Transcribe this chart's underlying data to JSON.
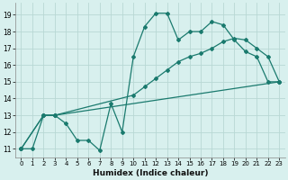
{
  "xlabel": "Humidex (Indice chaleur)",
  "bg_color": "#d8f0ee",
  "grid_color": "#b8d8d4",
  "line_color": "#1a7a6e",
  "xlim": [
    -0.5,
    23.5
  ],
  "ylim": [
    10.5,
    19.7
  ],
  "xticks": [
    0,
    1,
    2,
    3,
    4,
    5,
    6,
    7,
    8,
    9,
    10,
    11,
    12,
    13,
    14,
    15,
    16,
    17,
    18,
    19,
    20,
    21,
    22,
    23
  ],
  "yticks": [
    11,
    12,
    13,
    14,
    15,
    16,
    17,
    18,
    19
  ],
  "line1_x": [
    0,
    1,
    2,
    3,
    4,
    5,
    6,
    7,
    8,
    9,
    10,
    11,
    12,
    13,
    14,
    15,
    16,
    17,
    18,
    19,
    20,
    21,
    22,
    23
  ],
  "line1_y": [
    11.0,
    11.0,
    13.0,
    13.0,
    12.5,
    11.5,
    11.5,
    10.9,
    13.7,
    12.0,
    16.5,
    18.3,
    19.1,
    19.1,
    17.5,
    18.0,
    18.0,
    18.6,
    18.4,
    17.5,
    16.8,
    16.5,
    15.0,
    15.0
  ],
  "line2_x": [
    0,
    2,
    3,
    10,
    11,
    12,
    13,
    14,
    15,
    16,
    17,
    18,
    19,
    20,
    21,
    22,
    23
  ],
  "line2_y": [
    11.0,
    13.0,
    13.0,
    14.2,
    14.7,
    15.2,
    15.7,
    16.2,
    16.5,
    16.7,
    17.0,
    17.4,
    17.6,
    17.5,
    17.0,
    16.5,
    15.0
  ],
  "line3_x": [
    0,
    2,
    3,
    23
  ],
  "line3_y": [
    11.0,
    13.0,
    13.0,
    15.0
  ],
  "font_size": 6.5,
  "marker": "D",
  "marker_size": 2.0,
  "line_width": 0.9
}
